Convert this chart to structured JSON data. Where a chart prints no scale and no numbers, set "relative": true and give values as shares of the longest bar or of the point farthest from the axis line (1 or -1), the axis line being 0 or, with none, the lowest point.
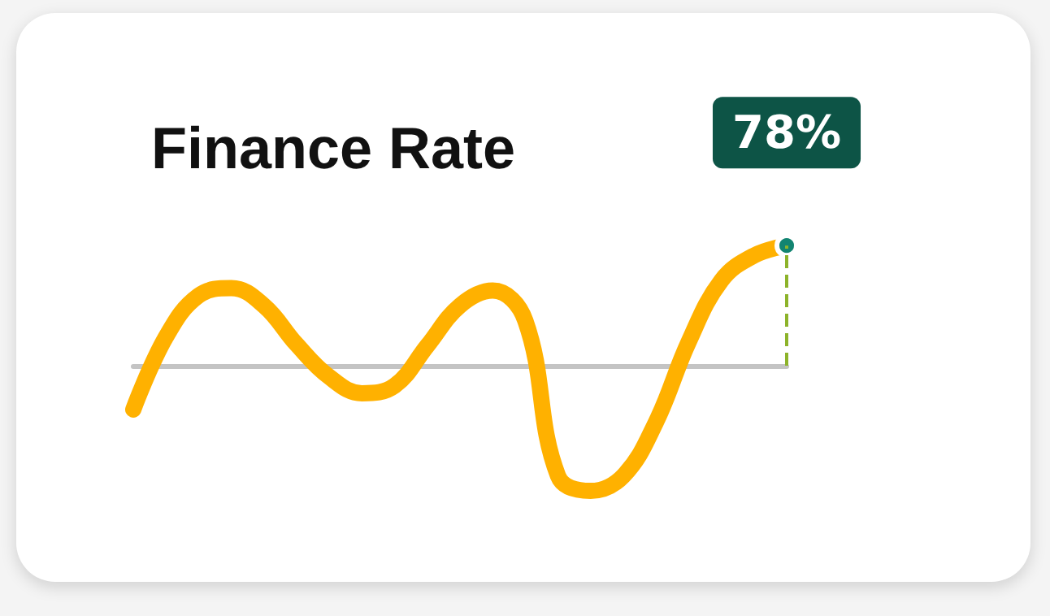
{
  "chart_data": {
    "type": "line",
    "title": "Finance Rate",
    "relative": true,
    "categories": [
      null,
      null,
      null,
      null,
      null,
      null,
      null,
      null,
      null,
      null,
      null,
      null,
      null,
      null,
      null,
      null,
      null,
      null,
      null,
      null,
      null
    ],
    "series": [
      {
        "color": "#ffb100",
        "values": [
          -0.35,
          0.23,
          0.56,
          0.62,
          0.48,
          0.17,
          -0.09,
          -0.22,
          -0.16,
          0.16,
          0.48,
          0.6,
          0.36,
          -0.88,
          -1,
          -0.88,
          -0.45,
          0.19,
          0.68,
          0.88,
          0.96
        ]
      }
    ],
    "annotations": [
      {
        "text": "78%",
        "y": 0.96
      }
    ],
    "grid": false,
    "line_style": "solid"
  }
}
